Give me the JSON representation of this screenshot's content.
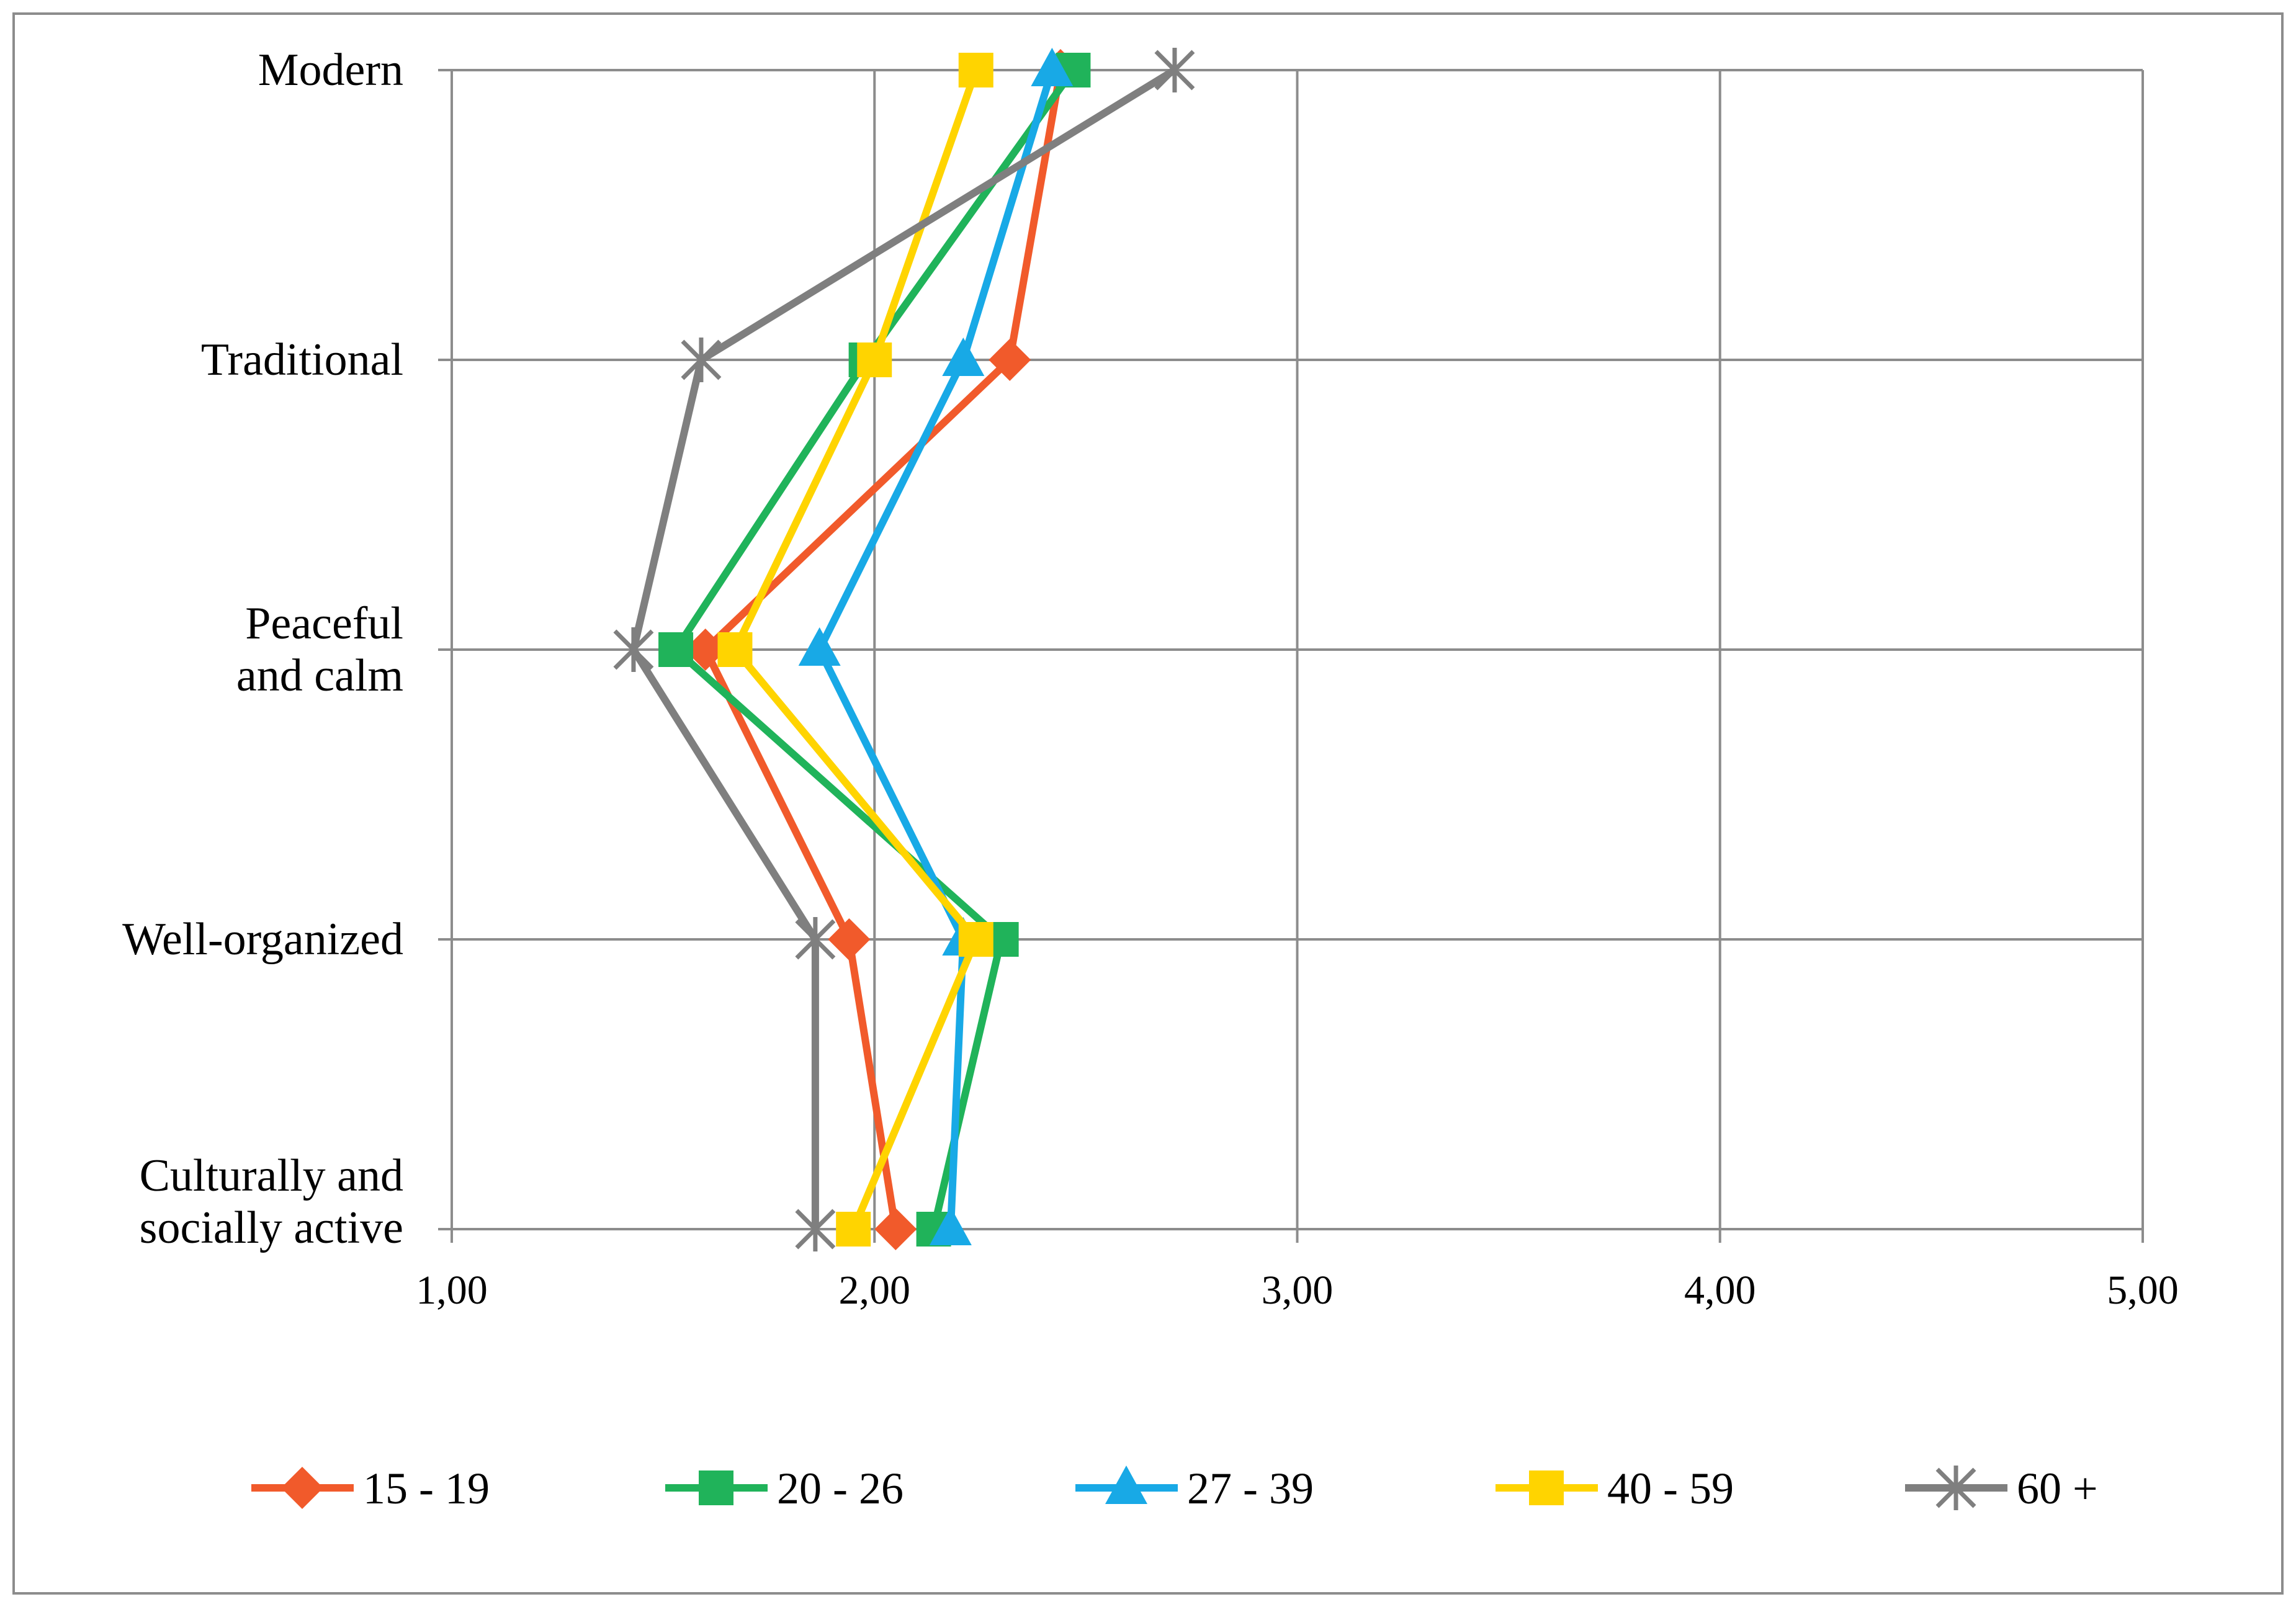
{
  "chart_data": {
    "type": "line",
    "orientation": "horizontal-values",
    "categories": [
      "Modern",
      "Traditional",
      "Peaceful and calm",
      "Well-organized",
      "Culturally and socially active"
    ],
    "category_label_lines": [
      [
        "Modern"
      ],
      [
        "Traditional"
      ],
      [
        "Peaceful",
        "and calm"
      ],
      [
        "Well-organized"
      ],
      [
        "Culturally and",
        "socially active"
      ]
    ],
    "xlim": [
      1,
      5
    ],
    "x_ticks": [
      1,
      2,
      3,
      4,
      5
    ],
    "x_tick_labels": [
      "1,00",
      "2,00",
      "3,00",
      "4,00",
      "5,00"
    ],
    "grid": true,
    "legend_position": "bottom",
    "series": [
      {
        "name": "15 - 19",
        "color": "#f15a2b",
        "marker": "diamond",
        "values": [
          2.44,
          2.32,
          1.6,
          1.94,
          2.05
        ]
      },
      {
        "name": "20 - 26",
        "color": "#20b35a",
        "marker": "square",
        "values": [
          2.47,
          1.98,
          1.53,
          2.3,
          2.14
        ]
      },
      {
        "name": "27 - 39",
        "color": "#18a9e6",
        "marker": "triangle",
        "values": [
          2.42,
          2.21,
          1.87,
          2.21,
          2.18
        ]
      },
      {
        "name": "40 - 59",
        "color": "#ffd400",
        "marker": "square",
        "values": [
          2.24,
          2.0,
          1.67,
          2.24,
          1.95
        ]
      },
      {
        "name": "60 +",
        "color": "#7f7f7f",
        "marker": "star",
        "values": [
          2.71,
          1.59,
          1.43,
          1.86,
          1.86
        ]
      }
    ]
  }
}
